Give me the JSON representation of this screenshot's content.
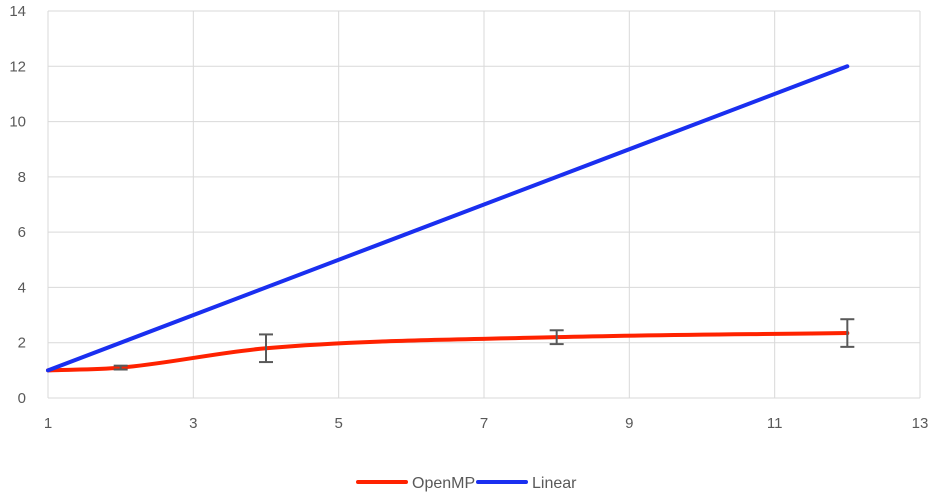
{
  "chart_data": {
    "type": "line",
    "title": "",
    "xlabel": "",
    "ylabel": "",
    "xlim": [
      1,
      13
    ],
    "ylim": [
      0,
      14
    ],
    "x_ticks": [
      1,
      3,
      5,
      7,
      9,
      11,
      13
    ],
    "y_ticks": [
      0,
      2,
      4,
      6,
      8,
      10,
      12,
      14
    ],
    "grid": true,
    "legend_position": "bottom",
    "series": [
      {
        "name": "OpenMP",
        "color": "#ff2200",
        "smooth": true,
        "x": [
          1,
          2,
          4,
          8,
          12
        ],
        "y": [
          1.0,
          1.1,
          1.8,
          2.2,
          2.35
        ],
        "error": [
          0,
          0.07,
          0.5,
          0.25,
          0.5
        ]
      },
      {
        "name": "Linear",
        "color": "#1a2ff0",
        "smooth": false,
        "x": [
          1,
          12
        ],
        "y": [
          1,
          12
        ]
      }
    ]
  }
}
